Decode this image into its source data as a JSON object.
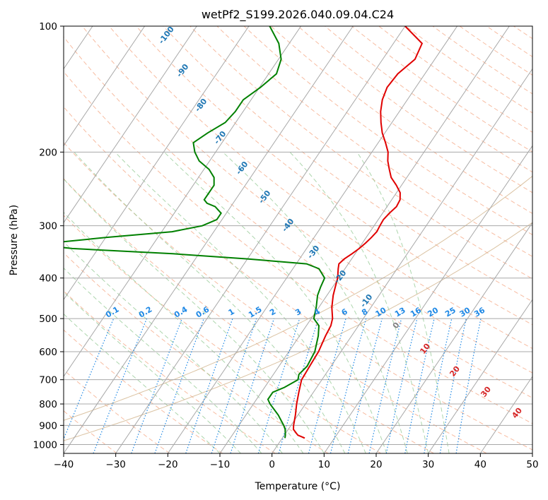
{
  "chart_data": {
    "type": "line",
    "subtype": "skew-T log-P diagram",
    "title": "wetPf2_S199.2026.040.09.04.C24",
    "xlabel": "Temperature (°C)",
    "ylabel": "Pressure (hPa)",
    "xlim": [
      -40,
      50
    ],
    "ylim": [
      1050,
      100
    ],
    "y_scale": "log",
    "grid": true,
    "x_ticks": [
      -40,
      -30,
      -20,
      -10,
      0,
      10,
      20,
      30,
      40,
      50
    ],
    "y_ticks": [
      100,
      200,
      300,
      400,
      500,
      600,
      700,
      800,
      900,
      1000
    ],
    "isotherm_labels": [
      "-100",
      "-90",
      "-80",
      "-70",
      "-60",
      "-50",
      "-40",
      "-30",
      "-20",
      "-10",
      "0",
      "10",
      "20",
      "30",
      "40"
    ],
    "mixing_ratio_labels": [
      "0.1",
      "0.2",
      "0.4",
      "0.6",
      "1",
      "1.5",
      "2",
      "3",
      "4",
      "6",
      "8",
      "10",
      "13",
      "16",
      "20",
      "25",
      "30",
      "36"
    ],
    "colors": {
      "temperature": "#e00000",
      "dewpoint": "#008000",
      "isotherm_label_cold": "#1f77b4",
      "isotherm_label_warm": "#d62728",
      "isotherm_label_zero": "#808080",
      "mixing_ratio": "#1e88e5",
      "dry_adiabat": "#f4a582",
      "moist_adiabat": "#99cc99",
      "extra_curves": "#d2b48c"
    },
    "series": [
      {
        "key": "temperature",
        "pressure": [
          965,
          950,
          920,
          900,
          850,
          800,
          750,
          700,
          650,
          600,
          550,
          520,
          500,
          470,
          440,
          420,
          400,
          380,
          370,
          360,
          350,
          340,
          330,
          320,
          310,
          300,
          290,
          280,
          270,
          260,
          250,
          240,
          230,
          220,
          210,
          200,
          190,
          180,
          170,
          160,
          150,
          140,
          130,
          120,
          110,
          100
        ],
        "values": [
          4.3,
          2.6,
          1.0,
          0.5,
          -0.5,
          -1.7,
          -2.8,
          -3.9,
          -4.1,
          -4.3,
          -5.0,
          -5.3,
          -5.9,
          -7.5,
          -8.8,
          -9.5,
          -10.2,
          -11.3,
          -11.8,
          -11.4,
          -10.6,
          -9.9,
          -9.4,
          -9.0,
          -8.7,
          -8.9,
          -9.0,
          -8.7,
          -8.2,
          -8.4,
          -9.3,
          -11.0,
          -13.0,
          -14.4,
          -15.8,
          -16.9,
          -18.6,
          -20.5,
          -22.1,
          -23.6,
          -24.8,
          -25.5,
          -25.2,
          -23.8,
          -24.5,
          -30.0
        ]
      },
      {
        "key": "dewpoint",
        "pressure": [
          965,
          950,
          920,
          900,
          850,
          800,
          780,
          750,
          730,
          700,
          680,
          650,
          600,
          550,
          520,
          500,
          470,
          440,
          420,
          400,
          380,
          370,
          360,
          350,
          345,
          340,
          335,
          330,
          320,
          310,
          300,
          290,
          280,
          270,
          265,
          260,
          250,
          240,
          230,
          220,
          210,
          200,
          190,
          180,
          170,
          160,
          150,
          140,
          130,
          120,
          110,
          100
        ],
        "values": [
          0.5,
          0.2,
          -0.6,
          -1.4,
          -3.8,
          -6.8,
          -7.8,
          -7.8,
          -6.2,
          -4.6,
          -5.1,
          -4.6,
          -5.0,
          -6.4,
          -7.6,
          -9.5,
          -10.5,
          -11.8,
          -12.3,
          -12.7,
          -15.0,
          -18.0,
          -30.0,
          -45.0,
          -55.0,
          -65.0,
          -70.0,
          -70.0,
          -60.0,
          -48.0,
          -43.0,
          -41.0,
          -41.0,
          -43.0,
          -45.0,
          -46.0,
          -46.0,
          -46.0,
          -47.0,
          -49.0,
          -52.0,
          -54.0,
          -55.5,
          -54.0,
          -52.0,
          -51.5,
          -51.5,
          -49.8,
          -48.5,
          -49.5,
          -52.0,
          -56.0
        ]
      }
    ]
  }
}
